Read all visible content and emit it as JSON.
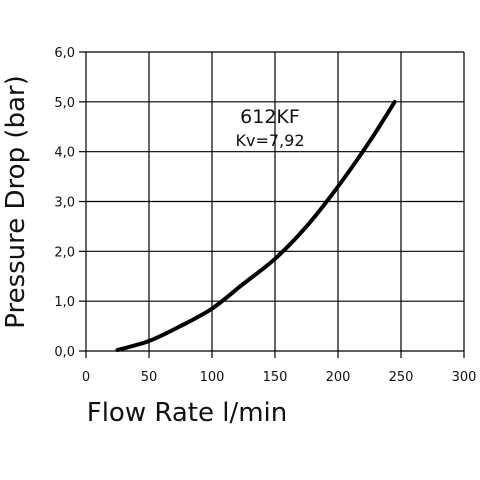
{
  "chart_data": {
    "type": "line",
    "xlabel": "Flow Rate l/min",
    "ylabel": "Pressure Drop (bar)",
    "xlim": [
      0,
      300
    ],
    "ylim": [
      0,
      6
    ],
    "x_ticks": [
      0,
      50,
      100,
      150,
      200,
      250,
      300
    ],
    "y_ticks": [
      0,
      1,
      2,
      3,
      4,
      5,
      6
    ],
    "x_tick_labels": [
      "0",
      "50",
      "100",
      "150",
      "200",
      "250",
      "300"
    ],
    "y_tick_labels": [
      "0,0",
      "1,0",
      "2,0",
      "3,0",
      "4,0",
      "5,0",
      "6,0"
    ],
    "grid": true,
    "annotation": {
      "title": "612KF",
      "subtitle": "Kv=7,92"
    },
    "series": [
      {
        "x": [
          25,
          50,
          75,
          100,
          125,
          150,
          175,
          200,
          225,
          245
        ],
        "y": [
          0.02,
          0.2,
          0.5,
          0.85,
          1.35,
          1.85,
          2.5,
          3.3,
          4.2,
          5.0
        ]
      }
    ],
    "colors": {
      "line": "#000000",
      "grid": "#000000"
    }
  }
}
